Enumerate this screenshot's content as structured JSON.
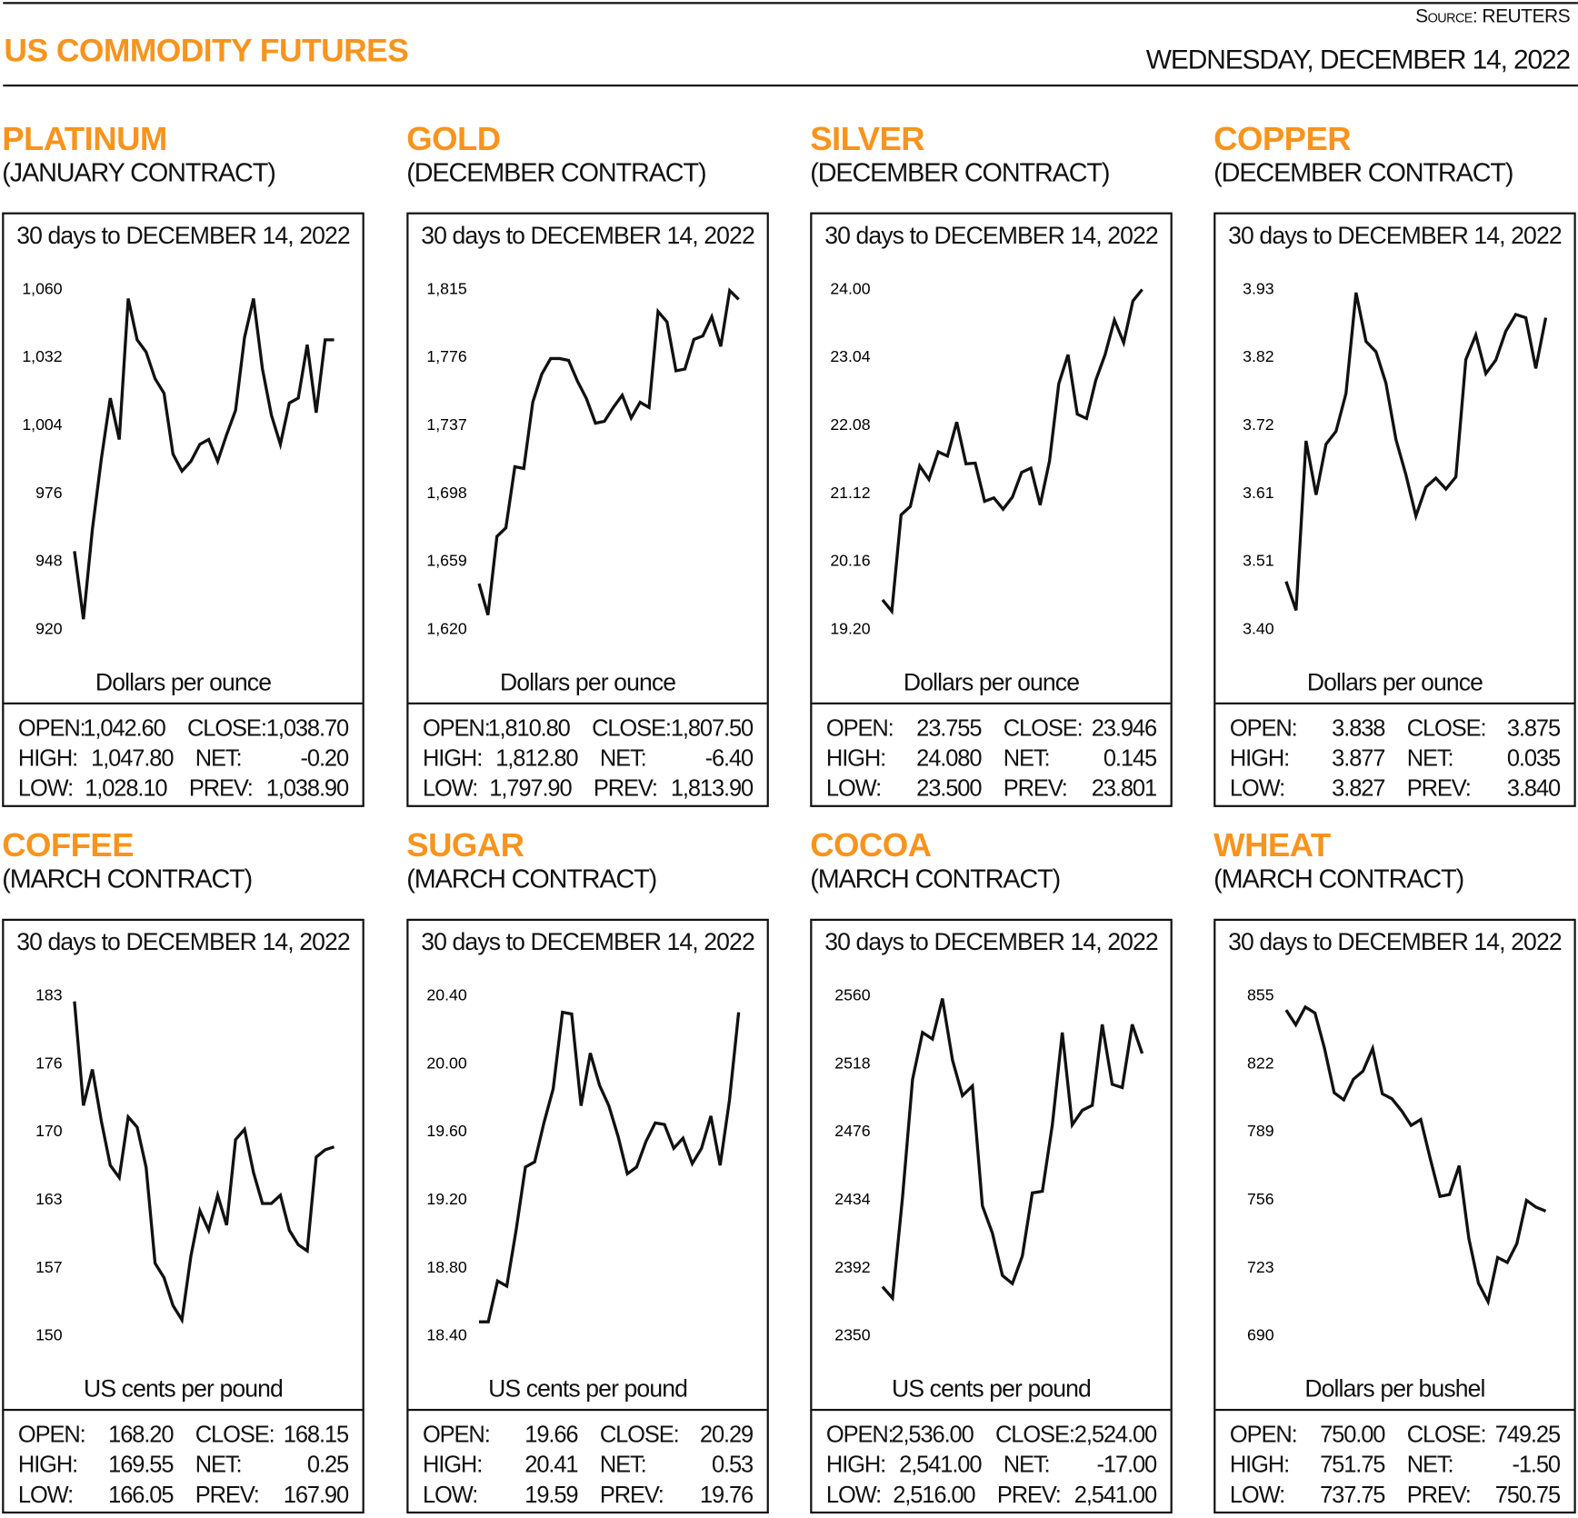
{
  "header": {
    "title": "US COMMODITY FUTURES",
    "source": "Source: REUTERS",
    "date": "WEDNESDAY, DECEMBER 14, 2022"
  },
  "stat_labels": {
    "open": "OPEN:",
    "high": "HIGH:",
    "low": "LOW:",
    "close": "CLOSE:",
    "net": "NET:",
    "prev": "PREV:"
  },
  "panels": [
    {
      "name": "PLATINUM",
      "contract": "(JANUARY CONTRACT)",
      "caption": "30 days to DECEMBER 14, 2022",
      "unit": "Dollars per ounce",
      "stats": {
        "open": "1,042.60",
        "high": "1,047.80",
        "low": "1,028.10",
        "close": "1,038.70",
        "net": "-0.20",
        "prev": "1,038.90"
      }
    },
    {
      "name": "GOLD",
      "contract": "(DECEMBER CONTRACT)",
      "caption": "30 days to DECEMBER 14, 2022",
      "unit": "Dollars per ounce",
      "stats": {
        "open": "1,810.80",
        "high": "1,812.80",
        "low": "1,797.90",
        "close": "1,807.50",
        "net": "-6.40",
        "prev": "1,813.90"
      }
    },
    {
      "name": "SILVER",
      "contract": "(DECEMBER CONTRACT)",
      "caption": "30 days to DECEMBER 14, 2022",
      "unit": "Dollars per ounce",
      "stats": {
        "open": "23.755",
        "high": "24.080",
        "low": "23.500",
        "close": "23.946",
        "net": "0.145",
        "prev": "23.801"
      }
    },
    {
      "name": "COPPER",
      "contract": "(DECEMBER CONTRACT)",
      "caption": "30 days to DECEMBER 14, 2022",
      "unit": "Dollars per ounce",
      "stats": {
        "open": "3.838",
        "high": "3.877",
        "low": "3.827",
        "close": "3.875",
        "net": "0.035",
        "prev": "3.840"
      }
    },
    {
      "name": "COFFEE",
      "contract": "(MARCH CONTRACT)",
      "caption": "30 days to DECEMBER 14, 2022",
      "unit": "US cents per pound",
      "stats": {
        "open": "168.20",
        "high": "169.55",
        "low": "166.05",
        "close": "168.15",
        "net": "0.25",
        "prev": "167.90"
      }
    },
    {
      "name": "SUGAR",
      "contract": "(MARCH CONTRACT)",
      "caption": "30 days to DECEMBER 14, 2022",
      "unit": "US cents per pound",
      "stats": {
        "open": "19.66",
        "high": "20.41",
        "low": "19.59",
        "close": "20.29",
        "net": "0.53",
        "prev": "19.76"
      }
    },
    {
      "name": "COCOA",
      "contract": "(MARCH CONTRACT)",
      "caption": "30 days to DECEMBER 14, 2022",
      "unit": "US cents per pound",
      "stats": {
        "open": "2,536.00",
        "high": "2,541.00",
        "low": "2,516.00",
        "close": "2,524.00",
        "net": "-17.00",
        "prev": "2,541.00"
      }
    },
    {
      "name": "WHEAT",
      "contract": "(MARCH CONTRACT)",
      "caption": "30 days to DECEMBER 14, 2022",
      "unit": "Dollars per bushel",
      "stats": {
        "open": "750.00",
        "high": "751.75",
        "low": "737.75",
        "close": "749.25",
        "net": "-1.50",
        "prev": "750.75"
      }
    }
  ],
  "chart_data": [
    {
      "type": "line",
      "series_color": "#111111",
      "yticks": [
        "1,060",
        "1,032",
        "1,004",
        "976",
        "948",
        "920"
      ],
      "ylim": [
        920,
        1060
      ],
      "values": [
        952,
        924,
        961,
        990,
        1015,
        998,
        1056,
        1039,
        1034,
        1023,
        1017,
        992,
        985,
        989,
        996,
        998,
        989,
        1000,
        1010,
        1040,
        1056,
        1027,
        1008,
        996,
        1013,
        1015,
        1037,
        1009,
        1039,
        1039
      ]
    },
    {
      "type": "line",
      "series_color": "#111111",
      "yticks": [
        "1,815",
        "1,776",
        "1,737",
        "1,698",
        "1,659",
        "1,620"
      ],
      "ylim": [
        1620,
        1815
      ],
      "values": [
        1646,
        1628,
        1673,
        1678,
        1713,
        1712,
        1750,
        1766,
        1775,
        1775,
        1774,
        1762,
        1752,
        1738,
        1739,
        1747,
        1754,
        1741,
        1750,
        1747,
        1802,
        1796,
        1768,
        1769,
        1786,
        1788,
        1799,
        1782,
        1814,
        1809
      ]
    },
    {
      "type": "line",
      "series_color": "#111111",
      "yticks": [
        "24.00",
        "23.04",
        "22.08",
        "21.12",
        "20.16",
        "19.20"
      ],
      "ylim": [
        19.2,
        24.0
      ],
      "values": [
        19.61,
        19.45,
        20.81,
        20.93,
        21.5,
        21.31,
        21.7,
        21.64,
        22.12,
        21.53,
        21.54,
        21.0,
        21.05,
        20.89,
        21.06,
        21.41,
        21.47,
        20.95,
        21.57,
        22.66,
        23.07,
        22.23,
        22.17,
        22.71,
        23.07,
        23.56,
        23.24,
        23.83,
        23.99
      ]
    },
    {
      "type": "line",
      "series_color": "#111111",
      "yticks": [
        "3.93",
        "3.82",
        "3.72",
        "3.61",
        "3.51",
        "3.40"
      ],
      "ylim": [
        3.4,
        3.93
      ],
      "values": [
        3.474,
        3.429,
        3.693,
        3.609,
        3.688,
        3.708,
        3.767,
        3.924,
        3.848,
        3.832,
        3.783,
        3.695,
        3.64,
        3.576,
        3.621,
        3.635,
        3.618,
        3.637,
        3.82,
        3.858,
        3.798,
        3.819,
        3.864,
        3.89,
        3.885,
        3.806,
        3.885
      ]
    },
    {
      "type": "line",
      "series_color": "#111111",
      "yticks": [
        "183",
        "176",
        "170",
        "163",
        "157",
        "150"
      ],
      "ylim": [
        150,
        183
      ],
      "values": [
        182.4,
        172.3,
        175.8,
        170.8,
        166.5,
        165.3,
        171.2,
        170.2,
        166.3,
        157.0,
        155.6,
        152.9,
        151.5,
        157.7,
        162.1,
        160.2,
        163.6,
        160.7,
        169.0,
        170.0,
        165.8,
        162.8,
        162.8,
        163.6,
        160.2,
        158.8,
        158.2,
        167.3,
        168.0,
        168.3
      ]
    },
    {
      "type": "line",
      "series_color": "#111111",
      "yticks": [
        "20.40",
        "20.00",
        "19.60",
        "19.20",
        "18.80",
        "18.40"
      ],
      "ylim": [
        18.4,
        20.4
      ],
      "values": [
        18.48,
        18.48,
        18.72,
        18.69,
        19.02,
        19.39,
        19.42,
        19.65,
        19.85,
        20.3,
        20.29,
        19.75,
        20.06,
        19.87,
        19.75,
        19.57,
        19.35,
        19.39,
        19.54,
        19.65,
        19.64,
        19.5,
        19.56,
        19.41,
        19.5,
        19.69,
        19.4,
        19.78,
        20.3
      ]
    },
    {
      "type": "line",
      "series_color": "#111111",
      "yticks": [
        "2560",
        "2518",
        "2476",
        "2434",
        "2392",
        "2350"
      ],
      "ylim": [
        2350,
        2560
      ],
      "values": [
        2380,
        2373,
        2435,
        2508,
        2537,
        2533,
        2558,
        2520,
        2498,
        2504,
        2430,
        2413,
        2387,
        2382,
        2399,
        2438,
        2439,
        2480,
        2537,
        2480,
        2489,
        2492,
        2542,
        2505,
        2503,
        2542,
        2524
      ]
    },
    {
      "type": "line",
      "series_color": "#111111",
      "yticks": [
        "855",
        "822",
        "789",
        "756",
        "723",
        "690"
      ],
      "ylim": [
        690,
        855
      ],
      "values": [
        847.8,
        840.7,
        849.3,
        846.4,
        829.2,
        807.7,
        804.3,
        814.3,
        818.2,
        829.2,
        807.2,
        804.8,
        799.0,
        791.9,
        794.7,
        775.6,
        757.4,
        758.4,
        772.3,
        737.0,
        715.4,
        706.3,
        727.8,
        725.4,
        734.5,
        755.5,
        752.2,
        750.3
      ]
    }
  ],
  "colors": {
    "accent": "#F7941D",
    "line": "#111111"
  }
}
